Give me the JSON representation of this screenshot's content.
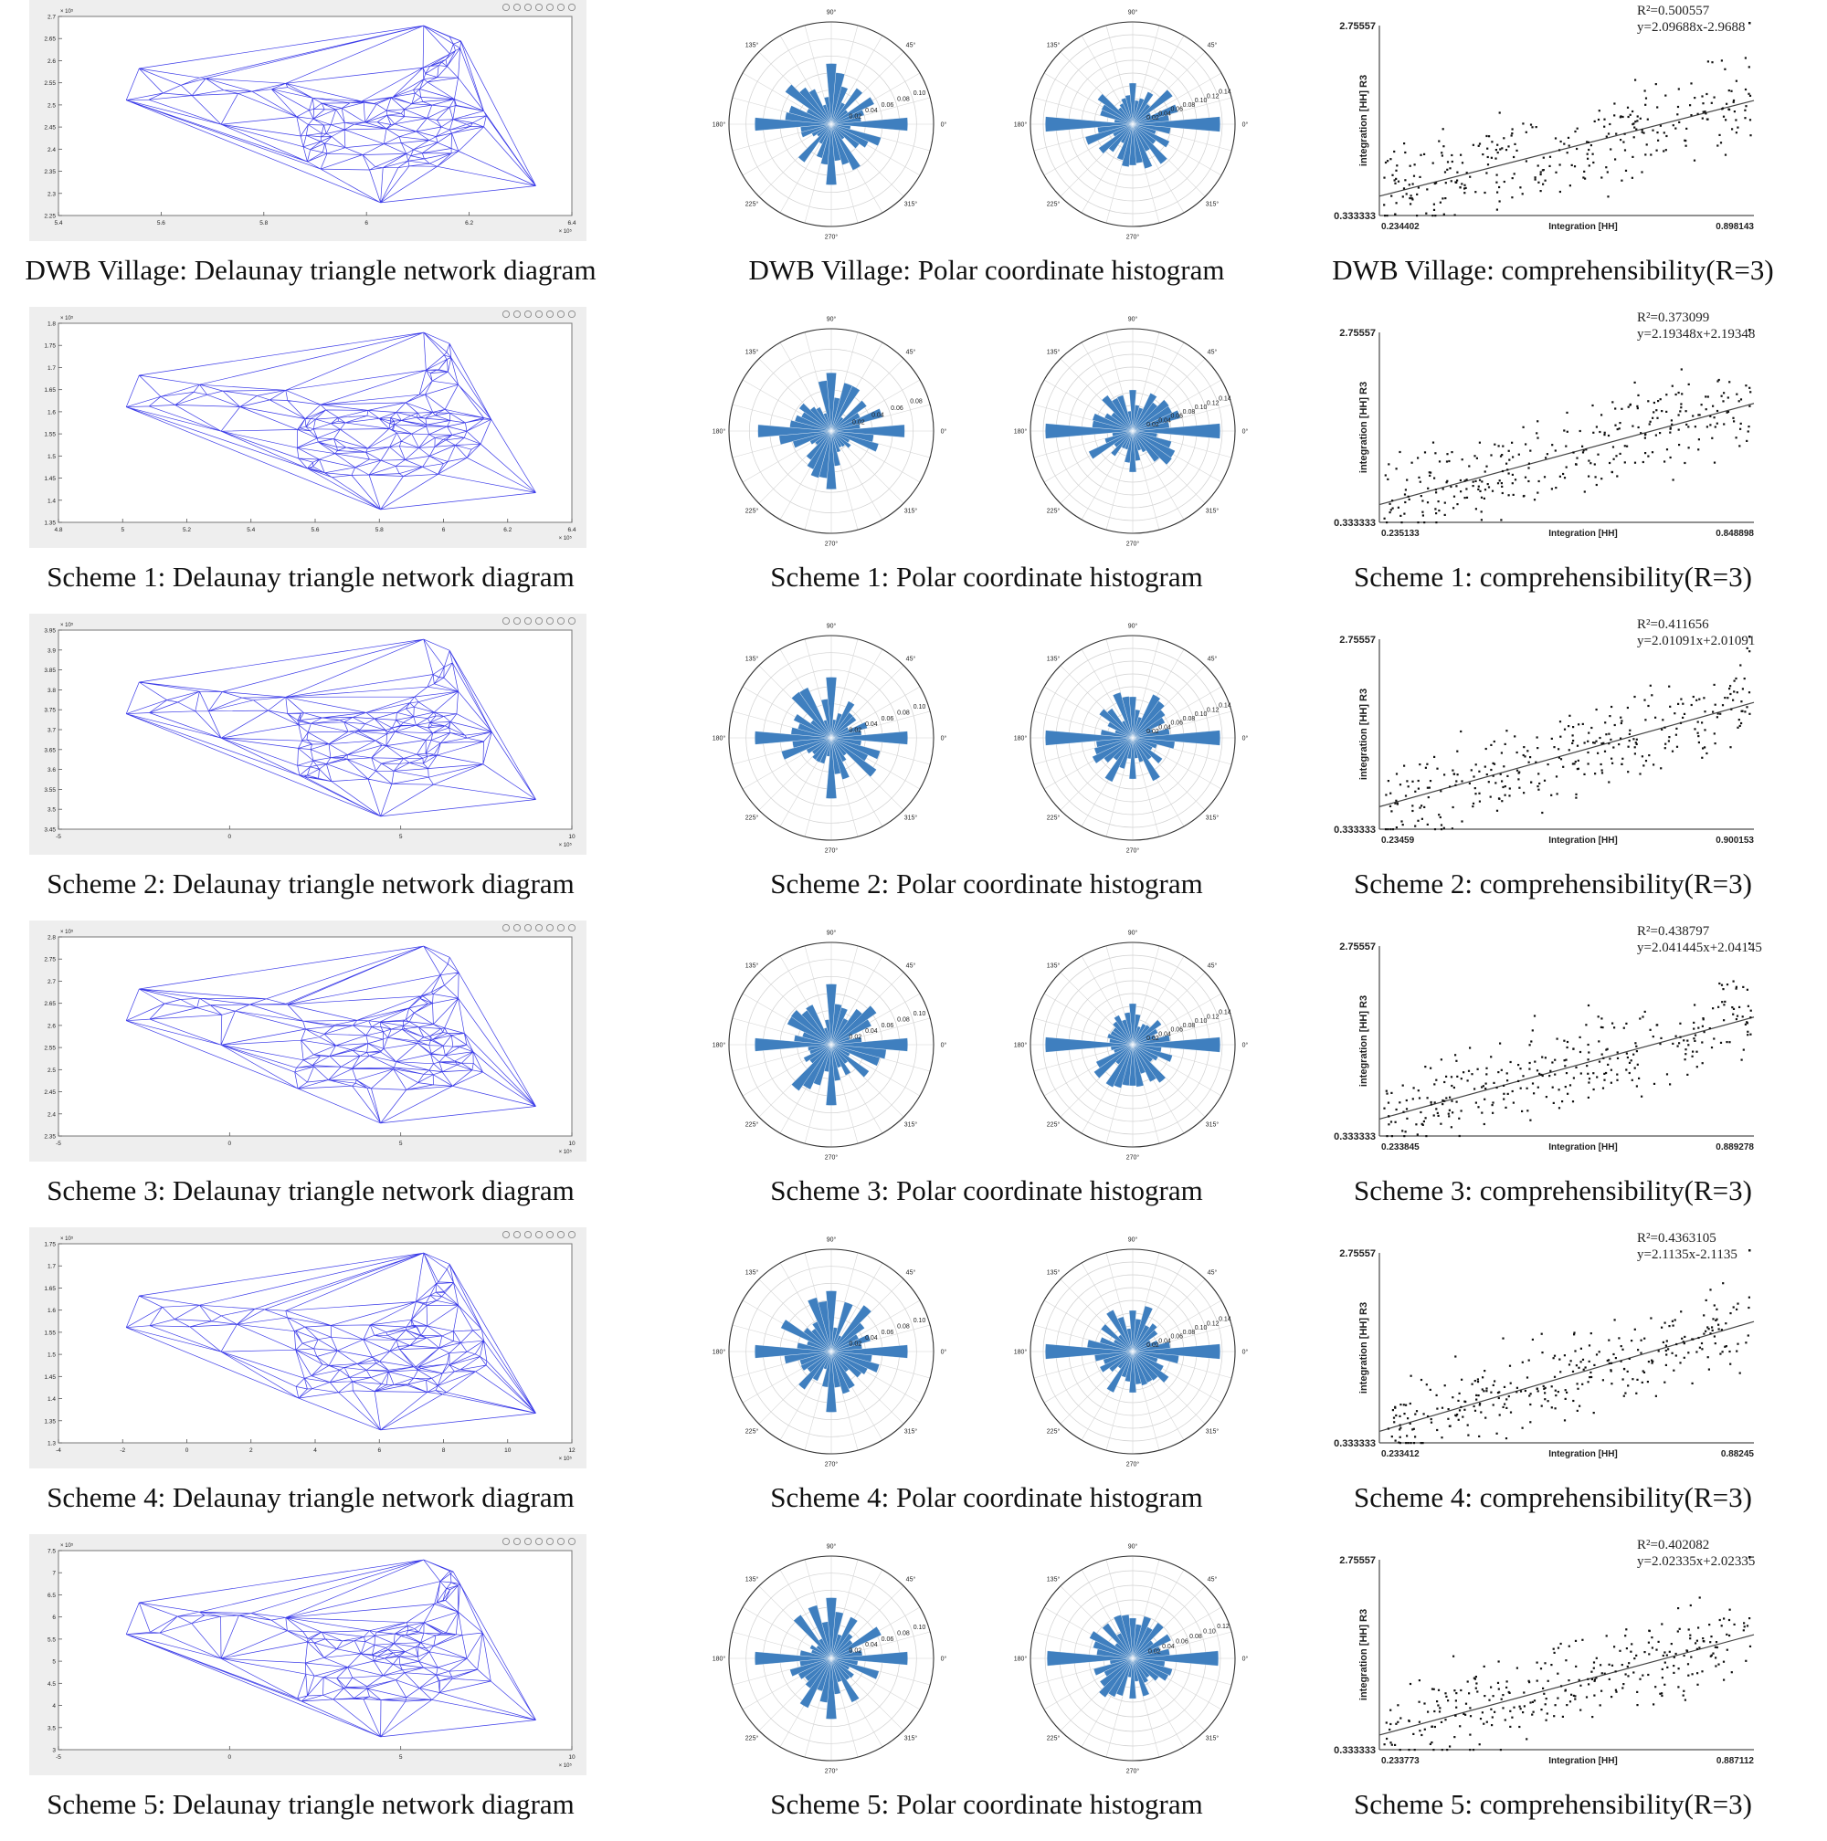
{
  "rows": [
    {
      "delaunay_caption": "DWB Village: Delaunay triangle network diagram",
      "polar_caption": "DWB Village: Polar coordinate histogram",
      "scatter_caption": "DWB Village: comprehensibility(R=3)",
      "delaunay": {
        "y_ticks": [
          "2.7",
          "2.65",
          "2.6",
          "2.55",
          "2.5",
          "2.45",
          "2.4",
          "2.35",
          "2.3",
          "2.25"
        ],
        "x_ticks": [
          "5.4",
          "5.6",
          "5.8",
          "6",
          "6.2",
          "6.4"
        ],
        "y_exp": "× 10⁵",
        "x_exp": "× 10⁵"
      },
      "polar_left": {
        "r_ticks": [
          "0.02",
          "0.04",
          "0.06",
          "0.08",
          "0.10"
        ],
        "r_max": 0.1
      },
      "polar_right": {
        "r_ticks": [
          "0.02",
          "0.04",
          "0.06",
          "0.08",
          "0.10",
          "0.12",
          "0.14"
        ],
        "r_max": 0.14
      }
    },
    {
      "delaunay_caption": "Scheme 1: Delaunay triangle network diagram",
      "polar_caption": "Scheme 1: Polar coordinate histogram",
      "scatter_caption": "Scheme 1: comprehensibility(R=3)",
      "delaunay": {
        "y_ticks": [
          "1.8",
          "1.75",
          "1.7",
          "1.65",
          "1.6",
          "1.55",
          "1.5",
          "1.45",
          "1.4",
          "1.35"
        ],
        "x_ticks": [
          "4.8",
          "5",
          "5.2",
          "5.4",
          "5.6",
          "5.8",
          "6",
          "6.2",
          "6.4"
        ],
        "y_exp": "× 10⁵",
        "x_exp": "× 10⁵"
      },
      "polar_left": {
        "r_ticks": [
          "0.02",
          "0.04",
          "0.06",
          "0.08"
        ],
        "r_max": 0.08
      },
      "polar_right": {
        "r_ticks": [
          "0.02",
          "0.04",
          "0.06",
          "0.08",
          "0.10",
          "0.12",
          "0.14"
        ],
        "r_max": 0.14
      }
    },
    {
      "delaunay_caption": "Scheme 2: Delaunay triangle network diagram",
      "polar_caption": "Scheme 2: Polar coordinate histogram",
      "scatter_caption": "Scheme 2: comprehensibility(R=3)",
      "delaunay": {
        "y_ticks": [
          "3.95",
          "3.9",
          "3.85",
          "3.8",
          "3.75",
          "3.7",
          "3.65",
          "3.6",
          "3.55",
          "3.5",
          "3.45"
        ],
        "x_ticks": [
          "-5",
          "0",
          "5",
          "10"
        ],
        "y_exp": "× 10⁵",
        "x_exp": "× 10⁵"
      },
      "polar_left": {
        "r_ticks": [
          "0.02",
          "0.04",
          "0.06",
          "0.08",
          "0.10"
        ],
        "r_max": 0.1
      },
      "polar_right": {
        "r_ticks": [
          "0.02",
          "0.04",
          "0.06",
          "0.08",
          "0.10",
          "0.12",
          "0.14"
        ],
        "r_max": 0.14
      }
    },
    {
      "delaunay_caption": "Scheme 3: Delaunay triangle network diagram",
      "polar_caption": "Scheme 3: Polar coordinate histogram",
      "scatter_caption": "Scheme 3: comprehensibility(R=3)",
      "delaunay": {
        "y_ticks": [
          "2.8",
          "2.75",
          "2.7",
          "2.65",
          "2.6",
          "2.55",
          "2.5",
          "2.45",
          "2.4",
          "2.35"
        ],
        "x_ticks": [
          "-5",
          "0",
          "5",
          "10"
        ],
        "y_exp": "× 10⁵",
        "x_exp": "× 10⁵"
      },
      "polar_left": {
        "r_ticks": [
          "0.02",
          "0.04",
          "0.06",
          "0.08",
          "0.10"
        ],
        "r_max": 0.1
      },
      "polar_right": {
        "r_ticks": [
          "0.02",
          "0.04",
          "0.06",
          "0.08",
          "0.10",
          "0.12",
          "0.14"
        ],
        "r_max": 0.14
      }
    },
    {
      "delaunay_caption": "Scheme 4: Delaunay triangle network diagram",
      "polar_caption": "Scheme 4: Polar coordinate histogram",
      "scatter_caption": "Scheme 4: comprehensibility(R=3)",
      "delaunay": {
        "y_ticks": [
          "1.75",
          "1.7",
          "1.65",
          "1.6",
          "1.55",
          "1.5",
          "1.45",
          "1.4",
          "1.35",
          "1.3"
        ],
        "x_ticks": [
          "-4",
          "-2",
          "0",
          "2",
          "4",
          "6",
          "8",
          "10",
          "12"
        ],
        "y_exp": "× 10⁵",
        "x_exp": "× 10⁵"
      },
      "polar_left": {
        "r_ticks": [
          "0.02",
          "0.04",
          "0.06",
          "0.08",
          "0.10"
        ],
        "r_max": 0.1
      },
      "polar_right": {
        "r_ticks": [
          "0.02",
          "0.04",
          "0.06",
          "0.08",
          "0.10",
          "0.12",
          "0.14"
        ],
        "r_max": 0.14
      }
    },
    {
      "delaunay_caption": "Scheme 5: Delaunay triangle network diagram",
      "polar_caption": "Scheme 5: Polar coordinate histogram",
      "scatter_caption": "Scheme 5: comprehensibility(R=3)",
      "delaunay": {
        "y_ticks": [
          "7.5",
          "7",
          "6.5",
          "6",
          "5.5",
          "5",
          "4.5",
          "4",
          "3.5",
          "3"
        ],
        "x_ticks": [
          "-5",
          "0",
          "5",
          "10"
        ],
        "y_exp": "× 10⁵",
        "x_exp": "× 10⁵"
      },
      "polar_left": {
        "r_ticks": [
          "0.02",
          "0.04",
          "0.06",
          "0.08",
          "0.10"
        ],
        "r_max": 0.1
      },
      "polar_right": {
        "r_ticks": [
          "0.02",
          "0.04",
          "0.06",
          "0.08",
          "0.10",
          "0.12"
        ],
        "r_max": 0.12
      }
    }
  ],
  "polar_angle_labels": [
    "0°",
    "45°",
    "90°",
    "135°",
    "180°",
    "225°",
    "270°",
    "315°"
  ],
  "colors": {
    "delaunay_line": "#3b3be8",
    "polar_bar": "#3f7fbf",
    "scatter_point": "#111111",
    "frame_bg": "#eeeeee"
  },
  "chart_data": [
    {
      "type": "scatter",
      "title": "DWB Village: comprehensibility(R=3)",
      "xlabel": "Integration [HH]",
      "ylabel": "integration [HH] R3",
      "xlim": [
        0.234402,
        0.898143
      ],
      "ylim": [
        0.333333,
        2.75557
      ],
      "x_min_label": "0.234402",
      "x_max_label": "0.898143",
      "y_min_label": "0.333333",
      "y_max_label": "2.75557",
      "r2_label": "R²=0.500557",
      "eq_label": "y=2.09688x-2.9688",
      "r2": 0.500557,
      "fit_y": [
        0.58,
        1.8
      ]
    },
    {
      "type": "scatter",
      "title": "Scheme 1: comprehensibility(R=3)",
      "xlabel": "Integration [HH]",
      "ylabel": "integration [HH] R3",
      "xlim": [
        0.235133,
        0.848898
      ],
      "ylim": [
        0.333333,
        2.75557
      ],
      "x_min_label": "0.235133",
      "x_max_label": "0.848898",
      "y_min_label": "0.333333",
      "y_max_label": "2.75557",
      "r2_label": "R²=0.373099",
      "eq_label": "y=2.19348x+2.19348",
      "r2": 0.373099,
      "fit_y": [
        0.56,
        1.85
      ]
    },
    {
      "type": "scatter",
      "title": "Scheme 2: comprehensibility(R=3)",
      "xlabel": "Integration [HH]",
      "ylabel": "integration [HH] R3",
      "xlim": [
        0.23459,
        0.900153
      ],
      "ylim": [
        0.333333,
        2.75557
      ],
      "x_min_label": "0.23459",
      "x_max_label": "0.900153",
      "y_min_label": "0.333333",
      "y_max_label": "2.75557",
      "r2_label": "R²=0.411656",
      "eq_label": "y=2.01091x+2.01091",
      "r2": 0.411656,
      "fit_y": [
        0.62,
        1.95
      ]
    },
    {
      "type": "scatter",
      "title": "Scheme 3: comprehensibility(R=3)",
      "xlabel": "Integration [HH]",
      "ylabel": "integration [HH] R3",
      "xlim": [
        0.233845,
        0.889278
      ],
      "ylim": [
        0.333333,
        2.75557
      ],
      "x_min_label": "0.233845",
      "x_max_label": "0.889278",
      "y_min_label": "0.333333",
      "y_max_label": "2.75557",
      "r2_label": "R²=0.438797",
      "eq_label": "y=2.041445x+2.04145",
      "r2": 0.438797,
      "fit_y": [
        0.55,
        1.85
      ]
    },
    {
      "type": "scatter",
      "title": "Scheme 4: comprehensibility(R=3)",
      "xlabel": "Integration [HH]",
      "ylabel": "integration [HH] R3",
      "xlim": [
        0.233412,
        0.88245
      ],
      "ylim": [
        0.333333,
        2.75557
      ],
      "x_min_label": "0.233412",
      "x_max_label": "0.88245",
      "y_min_label": "0.333333",
      "y_max_label": "2.75557",
      "r2_label": "R²=0.4363105",
      "eq_label": "y=2.1135x-2.1135",
      "r2": 0.4363105,
      "fit_y": [
        0.48,
        1.88
      ]
    },
    {
      "type": "scatter",
      "title": "Scheme 5: comprehensibility(R=3)",
      "xlabel": "Integration [HH]",
      "ylabel": "integration [HH] R3",
      "xlim": [
        0.233773,
        0.887112
      ],
      "ylim": [
        0.333333,
        2.75557
      ],
      "x_min_label": "0.233773",
      "x_max_label": "0.887112",
      "y_min_label": "0.333333",
      "y_max_label": "2.75557",
      "r2_label": "R²=0.402082",
      "eq_label": "y=2.02335x+2.02335",
      "r2": 0.402082,
      "fit_y": [
        0.52,
        1.8
      ]
    }
  ]
}
